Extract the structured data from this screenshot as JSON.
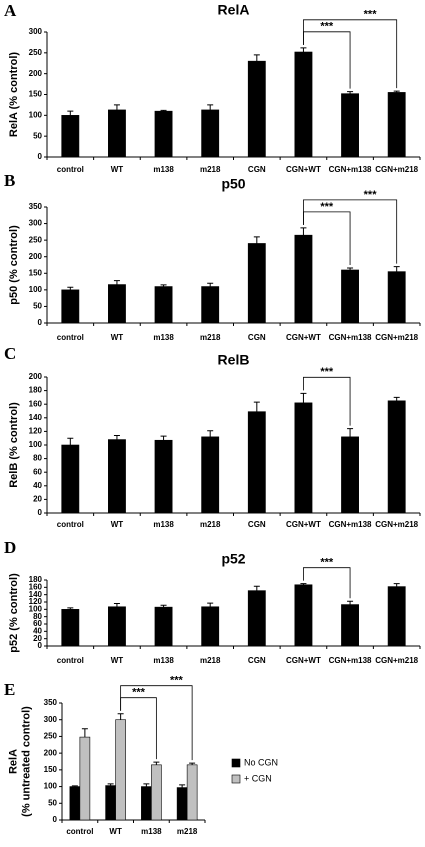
{
  "chart_data": [
    {
      "type": "bar",
      "label": "A",
      "title": "RelA",
      "y_label": [
        "RelA (% control)"
      ],
      "categories": [
        "control",
        "WT",
        "m138",
        "m218",
        "CGN",
        "CGN+WT",
        "CGN+m138",
        "CGN+m218"
      ],
      "values": [
        100,
        113,
        110,
        113,
        230,
        252,
        152,
        155
      ],
      "errors": [
        10,
        12,
        2,
        12,
        15,
        10,
        5,
        3
      ],
      "color": "#000000",
      "ylim": [
        0,
        300
      ],
      "yticks": [
        0,
        50,
        100,
        150,
        200,
        250,
        300
      ],
      "significance": [
        {
          "from": "CGN+WT",
          "to": "CGN+m138",
          "label": "***"
        },
        {
          "from": "CGN+WT",
          "to": "CGN+m218",
          "label": "***"
        }
      ]
    },
    {
      "type": "bar",
      "label": "B",
      "title": "p50",
      "y_label": [
        "p50 (% control)"
      ],
      "categories": [
        "control",
        "WT",
        "m138",
        "m218",
        "CGN",
        "CGN+WT",
        "CGN+m138",
        "CGN+m218"
      ],
      "values": [
        100,
        116,
        110,
        110,
        240,
        265,
        160,
        155
      ],
      "errors": [
        8,
        12,
        5,
        10,
        20,
        22,
        6,
        15
      ],
      "color": "#000000",
      "ylim": [
        0,
        350
      ],
      "yticks": [
        0,
        50,
        100,
        150,
        200,
        250,
        300,
        350
      ],
      "significance": [
        {
          "from": "CGN+WT",
          "to": "CGN+m138",
          "label": "***"
        },
        {
          "from": "CGN+WT",
          "to": "CGN+m218",
          "label": "***"
        }
      ]
    },
    {
      "type": "bar",
      "label": "C",
      "title": "RelB",
      "y_label": [
        "RelB (% control)"
      ],
      "categories": [
        "control",
        "WT",
        "m138",
        "m218",
        "CGN",
        "CGN+WT",
        "CGN+m138",
        "CGN+m218"
      ],
      "values": [
        100,
        108,
        107,
        112,
        149,
        162,
        112,
        165
      ],
      "errors": [
        10,
        6,
        6,
        9,
        14,
        14,
        12,
        5
      ],
      "color": "#000000",
      "ylim": [
        0,
        200
      ],
      "yticks": [
        0,
        20,
        40,
        60,
        80,
        100,
        120,
        140,
        160,
        180,
        200
      ],
      "significance": [
        {
          "from": "CGN+WT",
          "to": "CGN+m138",
          "label": "***"
        }
      ]
    },
    {
      "type": "bar",
      "label": "D",
      "title": "p52",
      "y_label": [
        "p52 (% control)"
      ],
      "categories": [
        "control",
        "WT",
        "m138",
        "m218",
        "CGN",
        "CGN+WT",
        "CGN+m138",
        "CGN+m218"
      ],
      "values": [
        100,
        107,
        106,
        107,
        151,
        167,
        113,
        162
      ],
      "errors": [
        4,
        9,
        5,
        10,
        12,
        3,
        9,
        8
      ],
      "color": "#000000",
      "ylim": [
        0,
        180
      ],
      "yticks": [
        0,
        20,
        40,
        60,
        80,
        100,
        120,
        140,
        160,
        180
      ],
      "significance": [
        {
          "from": "CGN+WT",
          "to": "CGN+m138",
          "label": "***"
        }
      ]
    },
    {
      "type": "bar",
      "label": "E",
      "y_label": [
        "RelA",
        "(% untreated control)"
      ],
      "categories": [
        "control",
        "WT",
        "m138",
        "m218"
      ],
      "series": [
        {
          "name": "No CGN",
          "color": "#000000",
          "values": [
            100,
            103,
            100,
            97
          ],
          "errors": [
            2,
            5,
            8,
            8
          ]
        },
        {
          "name": "+ CGN",
          "color": "#c0c0c0",
          "values": [
            248,
            300,
            165,
            165
          ],
          "errors": [
            25,
            18,
            8,
            5
          ]
        }
      ],
      "ylim": [
        0,
        350
      ],
      "yticks": [
        0,
        50,
        100,
        150,
        200,
        250,
        300,
        350
      ],
      "legend": "right",
      "significance": [
        {
          "from": "WT",
          "to": "m138",
          "series": "+ CGN",
          "label": "***"
        },
        {
          "from": "WT",
          "to": "m218",
          "series": "+ CGN",
          "label": "***"
        }
      ]
    }
  ]
}
